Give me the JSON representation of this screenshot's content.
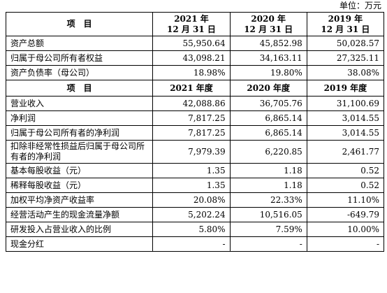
{
  "unit": "单位：万元",
  "header1": {
    "item": "项　目",
    "years": [
      {
        "line1": "2021 年",
        "line2": "12 月 31 日"
      },
      {
        "line1": "2020 年",
        "line2": "12 月 31 日"
      },
      {
        "line1": "2019 年",
        "line2": "12 月 31 日"
      }
    ]
  },
  "section1_rows": [
    {
      "label": "资产总额",
      "values": [
        "55,950.64",
        "45,852.98",
        "50,028.57"
      ]
    },
    {
      "label": "归属于母公司所有者权益",
      "values": [
        "43,098.21",
        "34,163.11",
        "27,325.11"
      ]
    },
    {
      "label": "资产负债率（母公司）",
      "values": [
        "18.98%",
        "19.80%",
        "38.08%"
      ]
    }
  ],
  "header2": {
    "item": "项　目",
    "years": [
      "2021 年度",
      "2020 年度",
      "2019 年度"
    ]
  },
  "section2_rows": [
    {
      "label": "营业收入",
      "values": [
        "42,088.86",
        "36,705.76",
        "31,100.69"
      ]
    },
    {
      "label": "净利润",
      "values": [
        "7,817.25",
        "6,865.14",
        "3,014.55"
      ]
    },
    {
      "label": "归属于母公司所有者的净利润",
      "values": [
        "7,817.25",
        "6,865.14",
        "3,014.55"
      ]
    },
    {
      "label": "扣除非经常性损益后归属于母公司所有者的净利润",
      "values": [
        "7,979.39",
        "6,220.85",
        "2,461.77"
      ]
    },
    {
      "label": "基本每股收益（元）",
      "values": [
        "1.35",
        "1.18",
        "0.52"
      ]
    },
    {
      "label": "稀释每股收益（元）",
      "values": [
        "1.35",
        "1.18",
        "0.52"
      ]
    },
    {
      "label": "加权平均净资产收益率",
      "values": [
        "20.08%",
        "22.33%",
        "11.10%"
      ]
    },
    {
      "label": "经营活动产生的现金流量净额",
      "values": [
        "5,202.24",
        "10,516.05",
        "-649.79"
      ]
    },
    {
      "label": "研发投入占营业收入的比例",
      "values": [
        "5.80%",
        "7.59%",
        "10.00%"
      ]
    },
    {
      "label": "现金分红",
      "values": [
        "-",
        "-",
        "-"
      ]
    }
  ]
}
